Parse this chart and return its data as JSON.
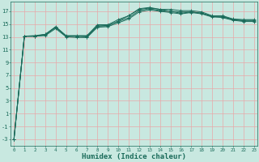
{
  "background_color": "#c8e8e0",
  "grid_color": "#b0d8d0",
  "line_color": "#1a6b5a",
  "xlabel": "Humidex (Indice chaleur)",
  "xlabel_fontsize": 6.5,
  "ytick_labels": [
    "17",
    "15",
    "13",
    "11",
    "9",
    "7",
    "5",
    "3",
    "1",
    "-1",
    "-3"
  ],
  "ytick_vals": [
    17,
    15,
    13,
    11,
    9,
    7,
    5,
    3,
    1,
    -1,
    -3
  ],
  "xtick_vals": [
    0,
    1,
    2,
    3,
    4,
    5,
    6,
    7,
    8,
    9,
    10,
    11,
    12,
    13,
    14,
    15,
    16,
    17,
    18,
    19,
    20,
    21,
    22,
    23
  ],
  "xlim": [
    -0.3,
    23.3
  ],
  "ylim": [
    -4.0,
    18.5
  ],
  "series": [
    [
      -3.0,
      13.1,
      13.1,
      13.3,
      14.5,
      13.1,
      13.1,
      13.1,
      14.7,
      14.7,
      15.5,
      16.3,
      17.3,
      17.5,
      17.3,
      17.3,
      17.1,
      17.1,
      16.9,
      16.3,
      16.3,
      15.8,
      15.7,
      15.7
    ],
    [
      -3.0,
      13.1,
      13.1,
      13.2,
      14.3,
      13.0,
      12.9,
      12.9,
      14.5,
      14.6,
      15.2,
      15.8,
      16.9,
      17.2,
      17.0,
      16.8,
      16.6,
      16.8,
      16.6,
      16.1,
      16.1,
      15.7,
      15.6,
      15.6
    ],
    [
      -3.0,
      13.1,
      13.1,
      13.4,
      14.6,
      13.2,
      13.2,
      13.2,
      14.9,
      14.9,
      15.7,
      16.3,
      17.4,
      17.6,
      17.3,
      17.0,
      16.9,
      16.9,
      16.7,
      16.2,
      16.0,
      15.6,
      15.4,
      15.4
    ],
    [
      -3.0,
      13.1,
      13.2,
      13.4,
      14.5,
      13.1,
      13.1,
      13.0,
      14.7,
      14.8,
      15.4,
      16.0,
      17.1,
      17.4,
      17.1,
      17.0,
      16.7,
      16.9,
      16.7,
      16.2,
      16.2,
      15.7,
      15.5,
      15.5
    ]
  ]
}
